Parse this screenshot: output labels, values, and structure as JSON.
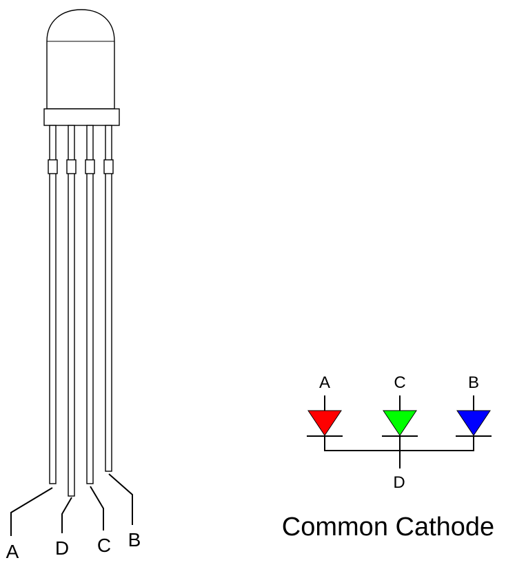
{
  "led_package": {
    "pins": [
      {
        "label": "A"
      },
      {
        "label": "D"
      },
      {
        "label": "C"
      },
      {
        "label": "B"
      }
    ]
  },
  "schematic": {
    "anode_labels": {
      "red": "A",
      "green": "C",
      "blue": "B"
    },
    "cathode_label": "D",
    "colors": {
      "red": "#ff0000",
      "green": "#00ff00",
      "blue": "#0000ff"
    },
    "caption": "Common Cathode"
  }
}
